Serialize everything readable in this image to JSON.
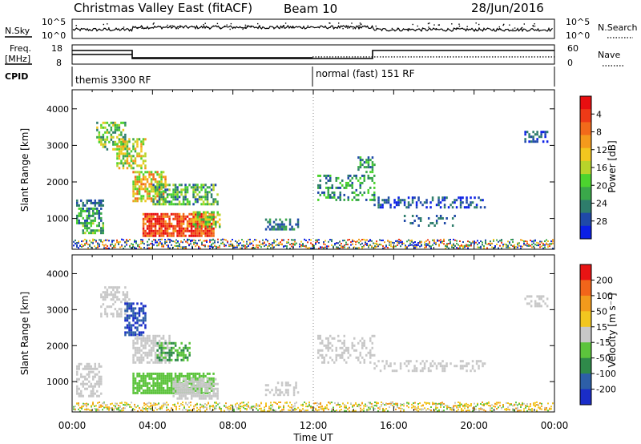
{
  "header": {
    "title": "Christmas Valley East (fitACF)",
    "beam": "Beam 10",
    "date": "28/Jun/2016"
  },
  "panels": {
    "nsky": {
      "label": "N.Sky",
      "tick_top": "10^5",
      "tick_bottom": "10^0",
      "right_label": "N.Search",
      "right_tick_top": "10^5",
      "right_tick_bottom": "10^0"
    },
    "freq": {
      "label_line1": "Freq.",
      "label_line2": "[MHz]",
      "tick_top": "18",
      "tick_bottom": "8",
      "right_label": "Nave",
      "right_tick_top": "60",
      "right_tick_bottom": "0"
    },
    "cpid": {
      "label": "CPID",
      "segments": [
        {
          "label": "themis 3300 RF",
          "start_hour": 0
        },
        {
          "label": "normal (fast) 151 RF",
          "start_hour": 12
        }
      ]
    }
  },
  "chart_data": [
    {
      "type": "heatmap",
      "name": "power",
      "ylabel": "Slant Range [km]",
      "y_ticks": [
        "1000",
        "2000",
        "3000",
        "4000"
      ],
      "ylim": [
        180,
        4500
      ],
      "xlim": [
        0,
        24
      ],
      "colorbar": {
        "label": "Power [dB]",
        "ticks": [
          "4",
          "8",
          "12",
          "16",
          "20",
          "24",
          "28"
        ],
        "colors": [
          "#0a1fe6",
          "#1f49a8",
          "#2e7d6b",
          "#3aa84a",
          "#4cd42e",
          "#b8d42a",
          "#f2c61f",
          "#f49a1c",
          "#f26a1a",
          "#ee3a17",
          "#e80e10"
        ]
      }
    },
    {
      "type": "heatmap",
      "name": "velocity",
      "ylabel": "Slant Range [km]",
      "y_ticks": [
        "1000",
        "2000",
        "3000",
        "4000"
      ],
      "ylim": [
        180,
        4500
      ],
      "xlim": [
        0,
        24
      ],
      "colorbar": {
        "label": "Velocity [m s⁻¹]",
        "ticks": [
          "200",
          "100",
          "50",
          "15",
          "-15",
          "-50",
          "-100",
          "-200"
        ],
        "colors": [
          "#1a2dc8",
          "#2d5fa8",
          "#2f8a4a",
          "#5cc43c",
          "#c8c8c8",
          "#f2c61f",
          "#f29a1c",
          "#f2651a",
          "#e81414"
        ]
      }
    }
  ],
  "x_axis": {
    "label": "Time UT",
    "ticks": [
      "00:00",
      "04:00",
      "08:00",
      "12:00",
      "16:00",
      "20:00",
      "00:00"
    ]
  }
}
